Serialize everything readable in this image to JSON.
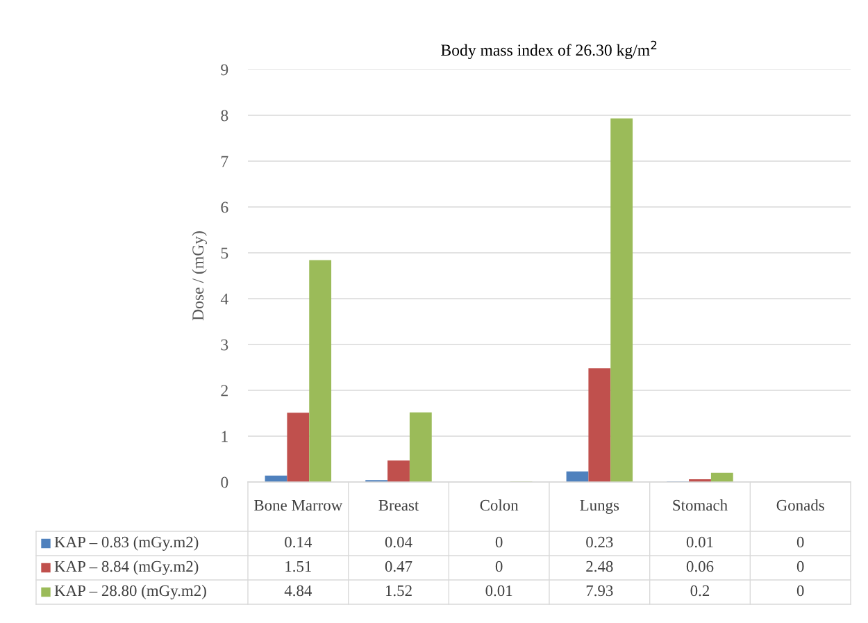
{
  "chart_data": {
    "type": "bar",
    "title": "Body mass index of 26.30 kg/m$^{2}$",
    "ylabel": "Dose / (mGy)",
    "categories": [
      "Bone Marrow",
      "Breast",
      "Colon",
      "Lungs",
      "Stomach",
      "Gonads"
    ],
    "series": [
      {
        "name": "KAP – 0.83 (mGy.m2)",
        "color": "#4f81bd",
        "values": [
          0.14,
          0.04,
          0,
          0.23,
          0.01,
          0
        ]
      },
      {
        "name": "KAP – 8.84 (mGy.m2)",
        "color": "#c0504d",
        "values": [
          1.51,
          0.47,
          0,
          2.48,
          0.06,
          0
        ]
      },
      {
        "name": "KAP – 28.80 (mGy.m2)",
        "color": "#9bbb59",
        "values": [
          4.84,
          1.52,
          0.01,
          7.93,
          0.2,
          0
        ]
      }
    ],
    "ylim": [
      0,
      9
    ],
    "yticks": [
      0,
      1,
      2,
      3,
      4,
      5,
      6,
      7,
      8,
      9
    ],
    "grid": "y",
    "legend": "bottom",
    "data_labels": true
  }
}
